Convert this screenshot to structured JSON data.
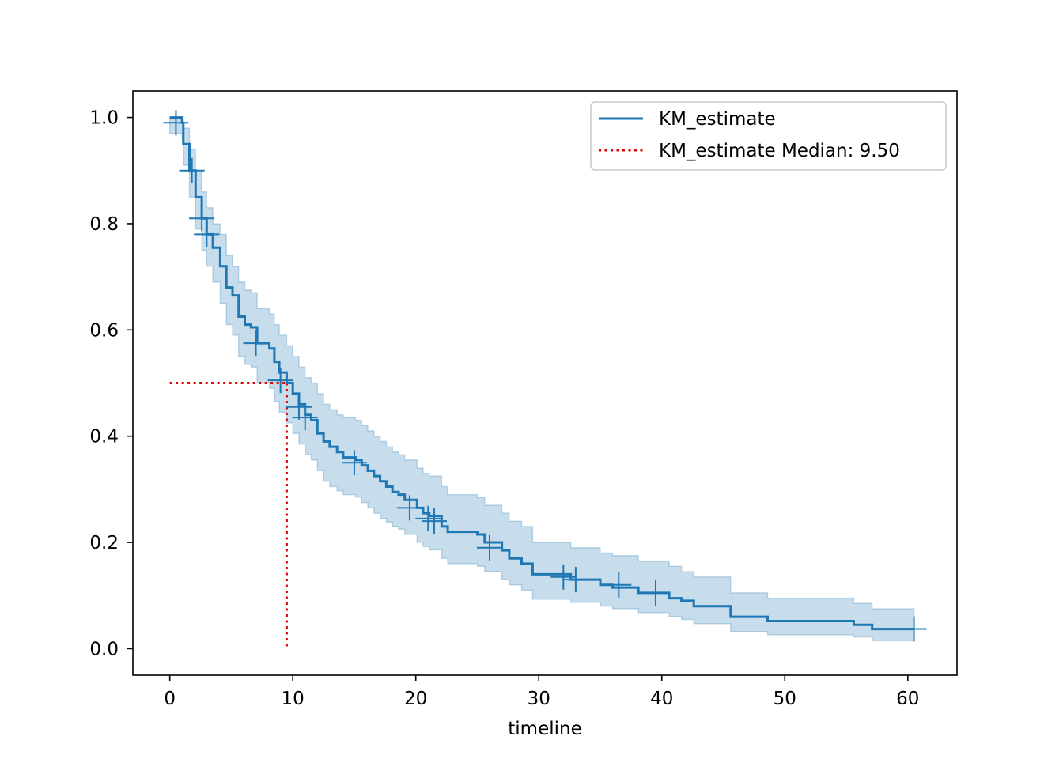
{
  "chart_data": {
    "type": "line",
    "xlabel": "timeline",
    "ylabel": "",
    "xlim": [
      -3,
      64
    ],
    "ylim": [
      -0.05,
      1.05
    ],
    "xticks": [
      0,
      10,
      20,
      30,
      40,
      50,
      60
    ],
    "yticks": [
      0.0,
      0.2,
      0.4,
      0.6,
      0.8,
      1.0
    ],
    "xtick_labels": [
      "0",
      "10",
      "20",
      "30",
      "40",
      "50",
      "60"
    ],
    "ytick_labels": [
      "0.0",
      "0.2",
      "0.4",
      "0.6",
      "0.8",
      "1.0"
    ],
    "grid": false,
    "legend_position": "top-right",
    "colors": {
      "series": "#1f77b4",
      "ci_fill": "#1f77b4",
      "median": "#e00000"
    },
    "series": [
      {
        "name": "KM_estimate",
        "style": "step-post",
        "points": [
          [
            0,
            1.0
          ],
          [
            1.0,
            0.99
          ],
          [
            1.1,
            0.95
          ],
          [
            1.6,
            0.9
          ],
          [
            2.1,
            0.85
          ],
          [
            2.6,
            0.81
          ],
          [
            3.0,
            0.78
          ],
          [
            3.5,
            0.755
          ],
          [
            4.1,
            0.72
          ],
          [
            4.6,
            0.68
          ],
          [
            5.1,
            0.665
          ],
          [
            5.6,
            0.625
          ],
          [
            6.1,
            0.61
          ],
          [
            6.6,
            0.605
          ],
          [
            7.1,
            0.575
          ],
          [
            8.1,
            0.565
          ],
          [
            8.5,
            0.54
          ],
          [
            8.9,
            0.52
          ],
          [
            9.5,
            0.5
          ],
          [
            10.0,
            0.48
          ],
          [
            10.5,
            0.46
          ],
          [
            11.0,
            0.44
          ],
          [
            11.5,
            0.43
          ],
          [
            12.0,
            0.405
          ],
          [
            12.5,
            0.39
          ],
          [
            13.0,
            0.38
          ],
          [
            13.6,
            0.37
          ],
          [
            14.1,
            0.36
          ],
          [
            15.1,
            0.355
          ],
          [
            15.6,
            0.345
          ],
          [
            16.1,
            0.335
          ],
          [
            16.6,
            0.325
          ],
          [
            17.1,
            0.315
          ],
          [
            17.6,
            0.305
          ],
          [
            18.1,
            0.295
          ],
          [
            18.6,
            0.29
          ],
          [
            19.1,
            0.28
          ],
          [
            20.1,
            0.265
          ],
          [
            20.6,
            0.255
          ],
          [
            21.1,
            0.25
          ],
          [
            22.1,
            0.23
          ],
          [
            22.6,
            0.22
          ],
          [
            25.0,
            0.215
          ],
          [
            25.6,
            0.2
          ],
          [
            27.0,
            0.185
          ],
          [
            27.6,
            0.17
          ],
          [
            28.6,
            0.16
          ],
          [
            29.5,
            0.14
          ],
          [
            32.6,
            0.13
          ],
          [
            35.0,
            0.12
          ],
          [
            36.0,
            0.115
          ],
          [
            38.1,
            0.105
          ],
          [
            40.6,
            0.095
          ],
          [
            41.6,
            0.09
          ],
          [
            42.6,
            0.08
          ],
          [
            45.6,
            0.06
          ],
          [
            48.6,
            0.052
          ],
          [
            55.6,
            0.045
          ],
          [
            57.1,
            0.037
          ],
          [
            60.5,
            0.037
          ]
        ],
        "ci_lower": [
          [
            0,
            0.97
          ],
          [
            1.0,
            0.96
          ],
          [
            1.1,
            0.91
          ],
          [
            1.6,
            0.85
          ],
          [
            2.1,
            0.79
          ],
          [
            2.6,
            0.75
          ],
          [
            3.0,
            0.72
          ],
          [
            3.5,
            0.69
          ],
          [
            4.1,
            0.65
          ],
          [
            4.6,
            0.61
          ],
          [
            5.1,
            0.59
          ],
          [
            5.6,
            0.55
          ],
          [
            6.1,
            0.535
          ],
          [
            6.6,
            0.53
          ],
          [
            7.1,
            0.5
          ],
          [
            8.1,
            0.49
          ],
          [
            8.5,
            0.465
          ],
          [
            8.9,
            0.445
          ],
          [
            9.5,
            0.425
          ],
          [
            10.0,
            0.405
          ],
          [
            10.5,
            0.385
          ],
          [
            11.0,
            0.365
          ],
          [
            11.5,
            0.355
          ],
          [
            12.0,
            0.335
          ],
          [
            12.5,
            0.315
          ],
          [
            13.0,
            0.305
          ],
          [
            13.6,
            0.297
          ],
          [
            14.1,
            0.29
          ],
          [
            15.1,
            0.285
          ],
          [
            15.6,
            0.275
          ],
          [
            16.1,
            0.265
          ],
          [
            16.6,
            0.255
          ],
          [
            17.1,
            0.245
          ],
          [
            17.6,
            0.238
          ],
          [
            18.1,
            0.23
          ],
          [
            18.6,
            0.225
          ],
          [
            19.1,
            0.215
          ],
          [
            20.1,
            0.2
          ],
          [
            20.6,
            0.192
          ],
          [
            21.1,
            0.186
          ],
          [
            22.1,
            0.17
          ],
          [
            22.6,
            0.16
          ],
          [
            25.0,
            0.155
          ],
          [
            25.6,
            0.145
          ],
          [
            27.0,
            0.13
          ],
          [
            27.6,
            0.12
          ],
          [
            28.6,
            0.11
          ],
          [
            29.5,
            0.093
          ],
          [
            32.6,
            0.087
          ],
          [
            35.0,
            0.08
          ],
          [
            36.0,
            0.075
          ],
          [
            38.1,
            0.068
          ],
          [
            40.6,
            0.06
          ],
          [
            41.6,
            0.055
          ],
          [
            42.6,
            0.047
          ],
          [
            45.6,
            0.032
          ],
          [
            48.6,
            0.026
          ],
          [
            55.6,
            0.022
          ],
          [
            57.1,
            0.015
          ],
          [
            60.5,
            0.015
          ]
        ],
        "ci_upper": [
          [
            0,
            1.0
          ],
          [
            1.0,
            1.0
          ],
          [
            1.1,
            0.98
          ],
          [
            1.6,
            0.94
          ],
          [
            2.1,
            0.9
          ],
          [
            2.6,
            0.86
          ],
          [
            3.0,
            0.83
          ],
          [
            3.5,
            0.8
          ],
          [
            4.1,
            0.78
          ],
          [
            4.6,
            0.74
          ],
          [
            5.1,
            0.72
          ],
          [
            5.6,
            0.69
          ],
          [
            6.1,
            0.675
          ],
          [
            6.6,
            0.67
          ],
          [
            7.1,
            0.64
          ],
          [
            8.1,
            0.63
          ],
          [
            8.5,
            0.61
          ],
          [
            8.9,
            0.59
          ],
          [
            9.5,
            0.57
          ],
          [
            10.0,
            0.55
          ],
          [
            10.5,
            0.53
          ],
          [
            11.0,
            0.51
          ],
          [
            11.5,
            0.5
          ],
          [
            12.0,
            0.48
          ],
          [
            12.5,
            0.46
          ],
          [
            13.0,
            0.45
          ],
          [
            13.6,
            0.44
          ],
          [
            14.1,
            0.435
          ],
          [
            15.1,
            0.43
          ],
          [
            15.6,
            0.42
          ],
          [
            16.1,
            0.41
          ],
          [
            16.6,
            0.4
          ],
          [
            17.1,
            0.39
          ],
          [
            17.6,
            0.38
          ],
          [
            18.1,
            0.37
          ],
          [
            18.6,
            0.365
          ],
          [
            19.1,
            0.355
          ],
          [
            20.1,
            0.34
          ],
          [
            20.6,
            0.33
          ],
          [
            21.1,
            0.325
          ],
          [
            22.1,
            0.305
          ],
          [
            22.6,
            0.29
          ],
          [
            25.0,
            0.285
          ],
          [
            25.6,
            0.27
          ],
          [
            27.0,
            0.255
          ],
          [
            27.6,
            0.24
          ],
          [
            28.6,
            0.23
          ],
          [
            29.5,
            0.2
          ],
          [
            32.6,
            0.19
          ],
          [
            35.0,
            0.18
          ],
          [
            36.0,
            0.175
          ],
          [
            38.1,
            0.165
          ],
          [
            40.6,
            0.155
          ],
          [
            41.6,
            0.145
          ],
          [
            42.6,
            0.135
          ],
          [
            45.6,
            0.105
          ],
          [
            48.6,
            0.095
          ],
          [
            55.6,
            0.085
          ],
          [
            57.1,
            0.075
          ],
          [
            60.5,
            0.075
          ]
        ],
        "censored": [
          [
            0.5,
            0.99
          ],
          [
            1.8,
            0.9
          ],
          [
            2.6,
            0.81
          ],
          [
            3.0,
            0.78
          ],
          [
            7.0,
            0.575
          ],
          [
            9.0,
            0.505
          ],
          [
            10.5,
            0.455
          ],
          [
            11.0,
            0.435
          ],
          [
            15.0,
            0.35
          ],
          [
            19.5,
            0.265
          ],
          [
            21.0,
            0.245
          ],
          [
            21.5,
            0.24
          ],
          [
            26.0,
            0.19
          ],
          [
            32.0,
            0.135
          ],
          [
            33.0,
            0.13
          ],
          [
            36.5,
            0.12
          ],
          [
            39.5,
            0.105
          ],
          [
            60.5,
            0.037
          ]
        ]
      }
    ],
    "median": {
      "value": 9.5,
      "survival": 0.5,
      "label": "KM_estimate Median: 9.50"
    },
    "legend": [
      "KM_estimate",
      "KM_estimate Median: 9.50"
    ]
  }
}
